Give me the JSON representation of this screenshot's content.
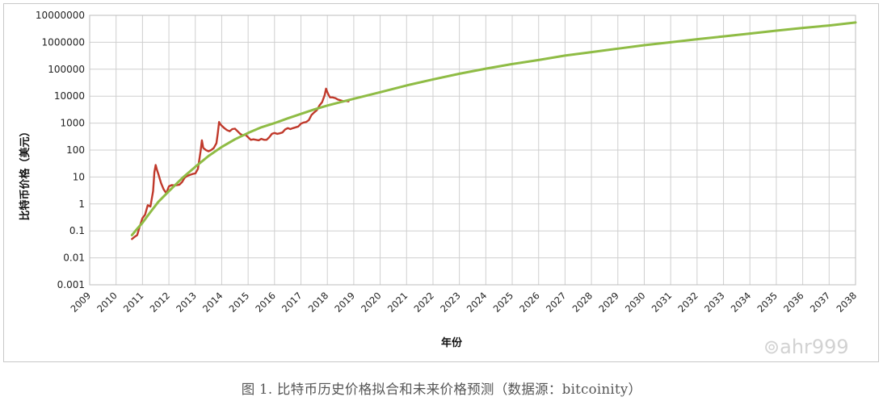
{
  "caption": "图 1. 比特币历史价格拟合和未来价格预测（数据源：bitcoinity）",
  "watermark": "ahr999",
  "chart_data": {
    "type": "line",
    "xlabel": "年份",
    "ylabel": "比特币价格（美元）",
    "yscale": "log",
    "ylim": [
      0.001,
      10000000
    ],
    "xlim": [
      2009,
      2038
    ],
    "grid": true,
    "y_ticks": [
      "0.001",
      "0.01",
      "0.1",
      "1",
      "10",
      "100",
      "1000",
      "10000",
      "100000",
      "1000000",
      "10000000"
    ],
    "x_ticks": [
      "2009",
      "2010",
      "2011",
      "2012",
      "2013",
      "2014",
      "2015",
      "2016",
      "2017",
      "2018",
      "2019",
      "2020",
      "2021",
      "2022",
      "2023",
      "2024",
      "2025",
      "2026",
      "2027",
      "2028",
      "2029",
      "2030",
      "2031",
      "2032",
      "2033",
      "2034",
      "2035",
      "2036",
      "2037",
      "2038"
    ],
    "colors": {
      "historical": "#c0392b",
      "fit": "#8fbc45"
    },
    "series": [
      {
        "id": "historical",
        "x": [
          2010.6,
          2010.7,
          2010.8,
          2010.9,
          2011.0,
          2011.1,
          2011.2,
          2011.3,
          2011.4,
          2011.45,
          2011.5,
          2011.55,
          2011.6,
          2011.7,
          2011.8,
          2011.9,
          2012.0,
          2012.1,
          2012.2,
          2012.3,
          2012.4,
          2012.5,
          2012.6,
          2012.7,
          2012.8,
          2012.9,
          2013.0,
          2013.1,
          2013.2,
          2013.25,
          2013.3,
          2013.35,
          2013.4,
          2013.5,
          2013.6,
          2013.7,
          2013.8,
          2013.85,
          2013.9,
          2013.95,
          2014.0,
          2014.1,
          2014.2,
          2014.3,
          2014.4,
          2014.5,
          2014.6,
          2014.7,
          2014.8,
          2014.9,
          2015.0,
          2015.1,
          2015.2,
          2015.3,
          2015.4,
          2015.5,
          2015.6,
          2015.7,
          2015.8,
          2015.9,
          2016.0,
          2016.1,
          2016.2,
          2016.3,
          2016.4,
          2016.5,
          2016.6,
          2016.7,
          2016.8,
          2016.9,
          2017.0,
          2017.1,
          2017.2,
          2017.3,
          2017.4,
          2017.5,
          2017.6,
          2017.7,
          2017.8,
          2017.9,
          2017.95,
          2018.0,
          2018.05,
          2018.1,
          2018.2,
          2018.3,
          2018.4,
          2018.5,
          2018.6,
          2018.7,
          2018.8
        ],
        "y": [
          0.05,
          0.06,
          0.07,
          0.15,
          0.3,
          0.4,
          0.9,
          0.8,
          3,
          15,
          28,
          18,
          13,
          6,
          3.5,
          2.5,
          4.5,
          5,
          4.9,
          5,
          5.2,
          6.5,
          9.5,
          11,
          12,
          13,
          13.5,
          20,
          90,
          230,
          120,
          110,
          100,
          90,
          100,
          120,
          180,
          400,
          1100,
          900,
          800,
          650,
          550,
          500,
          600,
          620,
          500,
          400,
          350,
          370,
          300,
          240,
          250,
          240,
          230,
          260,
          240,
          240,
          300,
          400,
          430,
          400,
          420,
          450,
          580,
          650,
          600,
          650,
          700,
          750,
          950,
          1050,
          1100,
          1300,
          2000,
          2500,
          3000,
          4500,
          6000,
          11000,
          19000,
          14000,
          11000,
          9000,
          9000,
          8500,
          7500,
          7000,
          6500,
          6600,
          6400
        ]
      },
      {
        "id": "fit",
        "x": [
          2010.6,
          2010.8,
          2011.0,
          2011.3,
          2011.6,
          2012.0,
          2012.5,
          2013.0,
          2013.5,
          2014.0,
          2014.5,
          2015.0,
          2015.5,
          2016.0,
          2016.5,
          2017.0,
          2017.5,
          2018.0,
          2018.5,
          2019.0,
          2020.0,
          2021.0,
          2022.0,
          2023.0,
          2024.0,
          2025.0,
          2026.0,
          2027.0,
          2028.0,
          2029.0,
          2030.0,
          2031.0,
          2032.0,
          2033.0,
          2034.0,
          2035.0,
          2036.0,
          2037.0,
          2038.0
        ],
        "y": [
          0.07,
          0.12,
          0.2,
          0.5,
          1.2,
          3,
          9,
          24,
          60,
          130,
          250,
          430,
          700,
          1000,
          1500,
          2200,
          3200,
          4500,
          6000,
          8000,
          14000,
          25000,
          42000,
          68000,
          105000,
          155000,
          220000,
          320000,
          430000,
          580000,
          780000,
          1000000,
          1300000,
          1650000,
          2100000,
          2700000,
          3400000,
          4200000,
          5400000
        ]
      }
    ]
  }
}
